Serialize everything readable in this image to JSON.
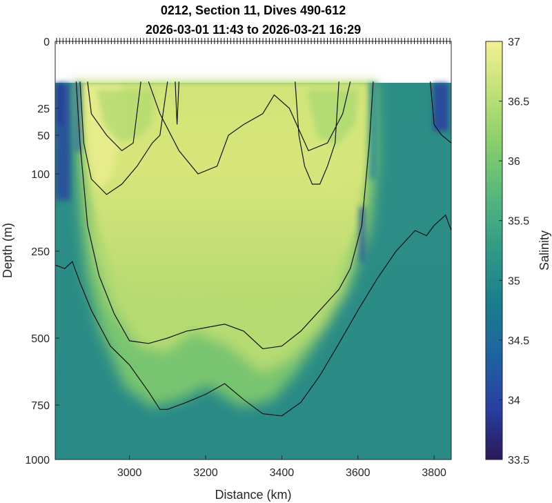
{
  "chart_data": {
    "type": "heatmap",
    "title_lines": [
      "0212, Section 11, Dives 490-612",
      "2026-03-01 11:43 to 2026-03-21 16:29"
    ],
    "xlabel": "Distance (km)",
    "ylabel": "Depth (m)",
    "colorbar_label": "Salinity",
    "xlim": [
      2805,
      3845
    ],
    "x_ticks": [
      3000,
      3200,
      3400,
      3600,
      3800
    ],
    "y_ticks": [
      0,
      25,
      50,
      100,
      250,
      500,
      750,
      1000
    ],
    "y_tick_labels": [
      "0",
      "25",
      "50",
      "100",
      "250",
      "500",
      "750",
      "1000"
    ],
    "colorbar_ticks": [
      33.5,
      34,
      34.5,
      35,
      35.5,
      36,
      36.5,
      37
    ],
    "clim": [
      33.5,
      37
    ],
    "data_top_depth": 15,
    "colormap": [
      "#2a1858",
      "#283ea0",
      "#1e63a0",
      "#1a7f8c",
      "#2f9a86",
      "#52b57e",
      "#86cd6c",
      "#c0e176",
      "#f4ef96"
    ],
    "contours": [
      {
        "name": "",
        "points": [
          [
            2805,
            290
          ],
          [
            2830,
            300
          ],
          [
            2850,
            280
          ],
          [
            2870,
            340
          ],
          [
            2900,
            420
          ],
          [
            2950,
            530
          ],
          [
            3000,
            600
          ],
          [
            3050,
            700
          ],
          [
            3080,
            770
          ],
          [
            3100,
            770
          ],
          [
            3150,
            740
          ],
          [
            3200,
            710
          ],
          [
            3250,
            670
          ],
          [
            3300,
            730
          ],
          [
            3350,
            790
          ],
          [
            3400,
            800
          ],
          [
            3450,
            740
          ],
          [
            3500,
            640
          ],
          [
            3550,
            520
          ],
          [
            3600,
            420
          ],
          [
            3650,
            330
          ],
          [
            3700,
            250
          ],
          [
            3750,
            210
          ],
          [
            3780,
            220
          ],
          [
            3800,
            200
          ],
          [
            3830,
            180
          ],
          [
            3845,
            210
          ]
        ]
      },
      {
        "name": "",
        "points": [
          [
            2860,
            15
          ],
          [
            2870,
            60
          ],
          [
            2890,
            200
          ],
          [
            2920,
            320
          ],
          [
            2960,
            430
          ],
          [
            3000,
            510
          ],
          [
            3050,
            520
          ],
          [
            3100,
            500
          ],
          [
            3150,
            480
          ],
          [
            3200,
            470
          ],
          [
            3250,
            460
          ],
          [
            3300,
            480
          ],
          [
            3350,
            540
          ],
          [
            3400,
            530
          ],
          [
            3450,
            480
          ],
          [
            3500,
            420
          ],
          [
            3550,
            360
          ],
          [
            3580,
            300
          ],
          [
            3610,
            200
          ],
          [
            3630,
            60
          ],
          [
            3640,
            15
          ]
        ]
      },
      {
        "name": "",
        "points": [
          [
            2870,
            15
          ],
          [
            2880,
            60
          ],
          [
            2900,
            110
          ],
          [
            2940,
            140
          ],
          [
            2980,
            120
          ],
          [
            3020,
            90
          ],
          [
            3060,
            60
          ],
          [
            3080,
            50
          ],
          [
            3100,
            15
          ]
        ]
      },
      {
        "name": "",
        "points": [
          [
            3435,
            15
          ],
          [
            3445,
            50
          ],
          [
            3460,
            90
          ],
          [
            3480,
            120
          ],
          [
            3500,
            120
          ],
          [
            3520,
            90
          ],
          [
            3540,
            60
          ],
          [
            3550,
            15
          ]
        ]
      },
      {
        "name": "",
        "points": [
          [
            2890,
            15
          ],
          [
            2900,
            30
          ],
          [
            2940,
            50
          ],
          [
            2980,
            70
          ],
          [
            3010,
            60
          ],
          [
            3030,
            15
          ]
        ]
      },
      {
        "name": "",
        "points": [
          [
            3050,
            15
          ],
          [
            3080,
            30
          ],
          [
            3130,
            70
          ],
          [
            3180,
            100
          ],
          [
            3230,
            90
          ],
          [
            3260,
            50
          ],
          [
            3300,
            40
          ],
          [
            3350,
            30
          ],
          [
            3380,
            20
          ],
          [
            3420,
            25
          ],
          [
            3470,
            70
          ],
          [
            3520,
            60
          ],
          [
            3560,
            30
          ],
          [
            3580,
            15
          ]
        ]
      },
      {
        "name": "",
        "points": [
          [
            3120,
            15
          ],
          [
            3125,
            40
          ],
          [
            3130,
            15
          ]
        ]
      },
      {
        "name": "",
        "points": [
          [
            3790,
            15
          ],
          [
            3800,
            40
          ],
          [
            3820,
            50
          ],
          [
            3845,
            60
          ]
        ]
      }
    ]
  }
}
